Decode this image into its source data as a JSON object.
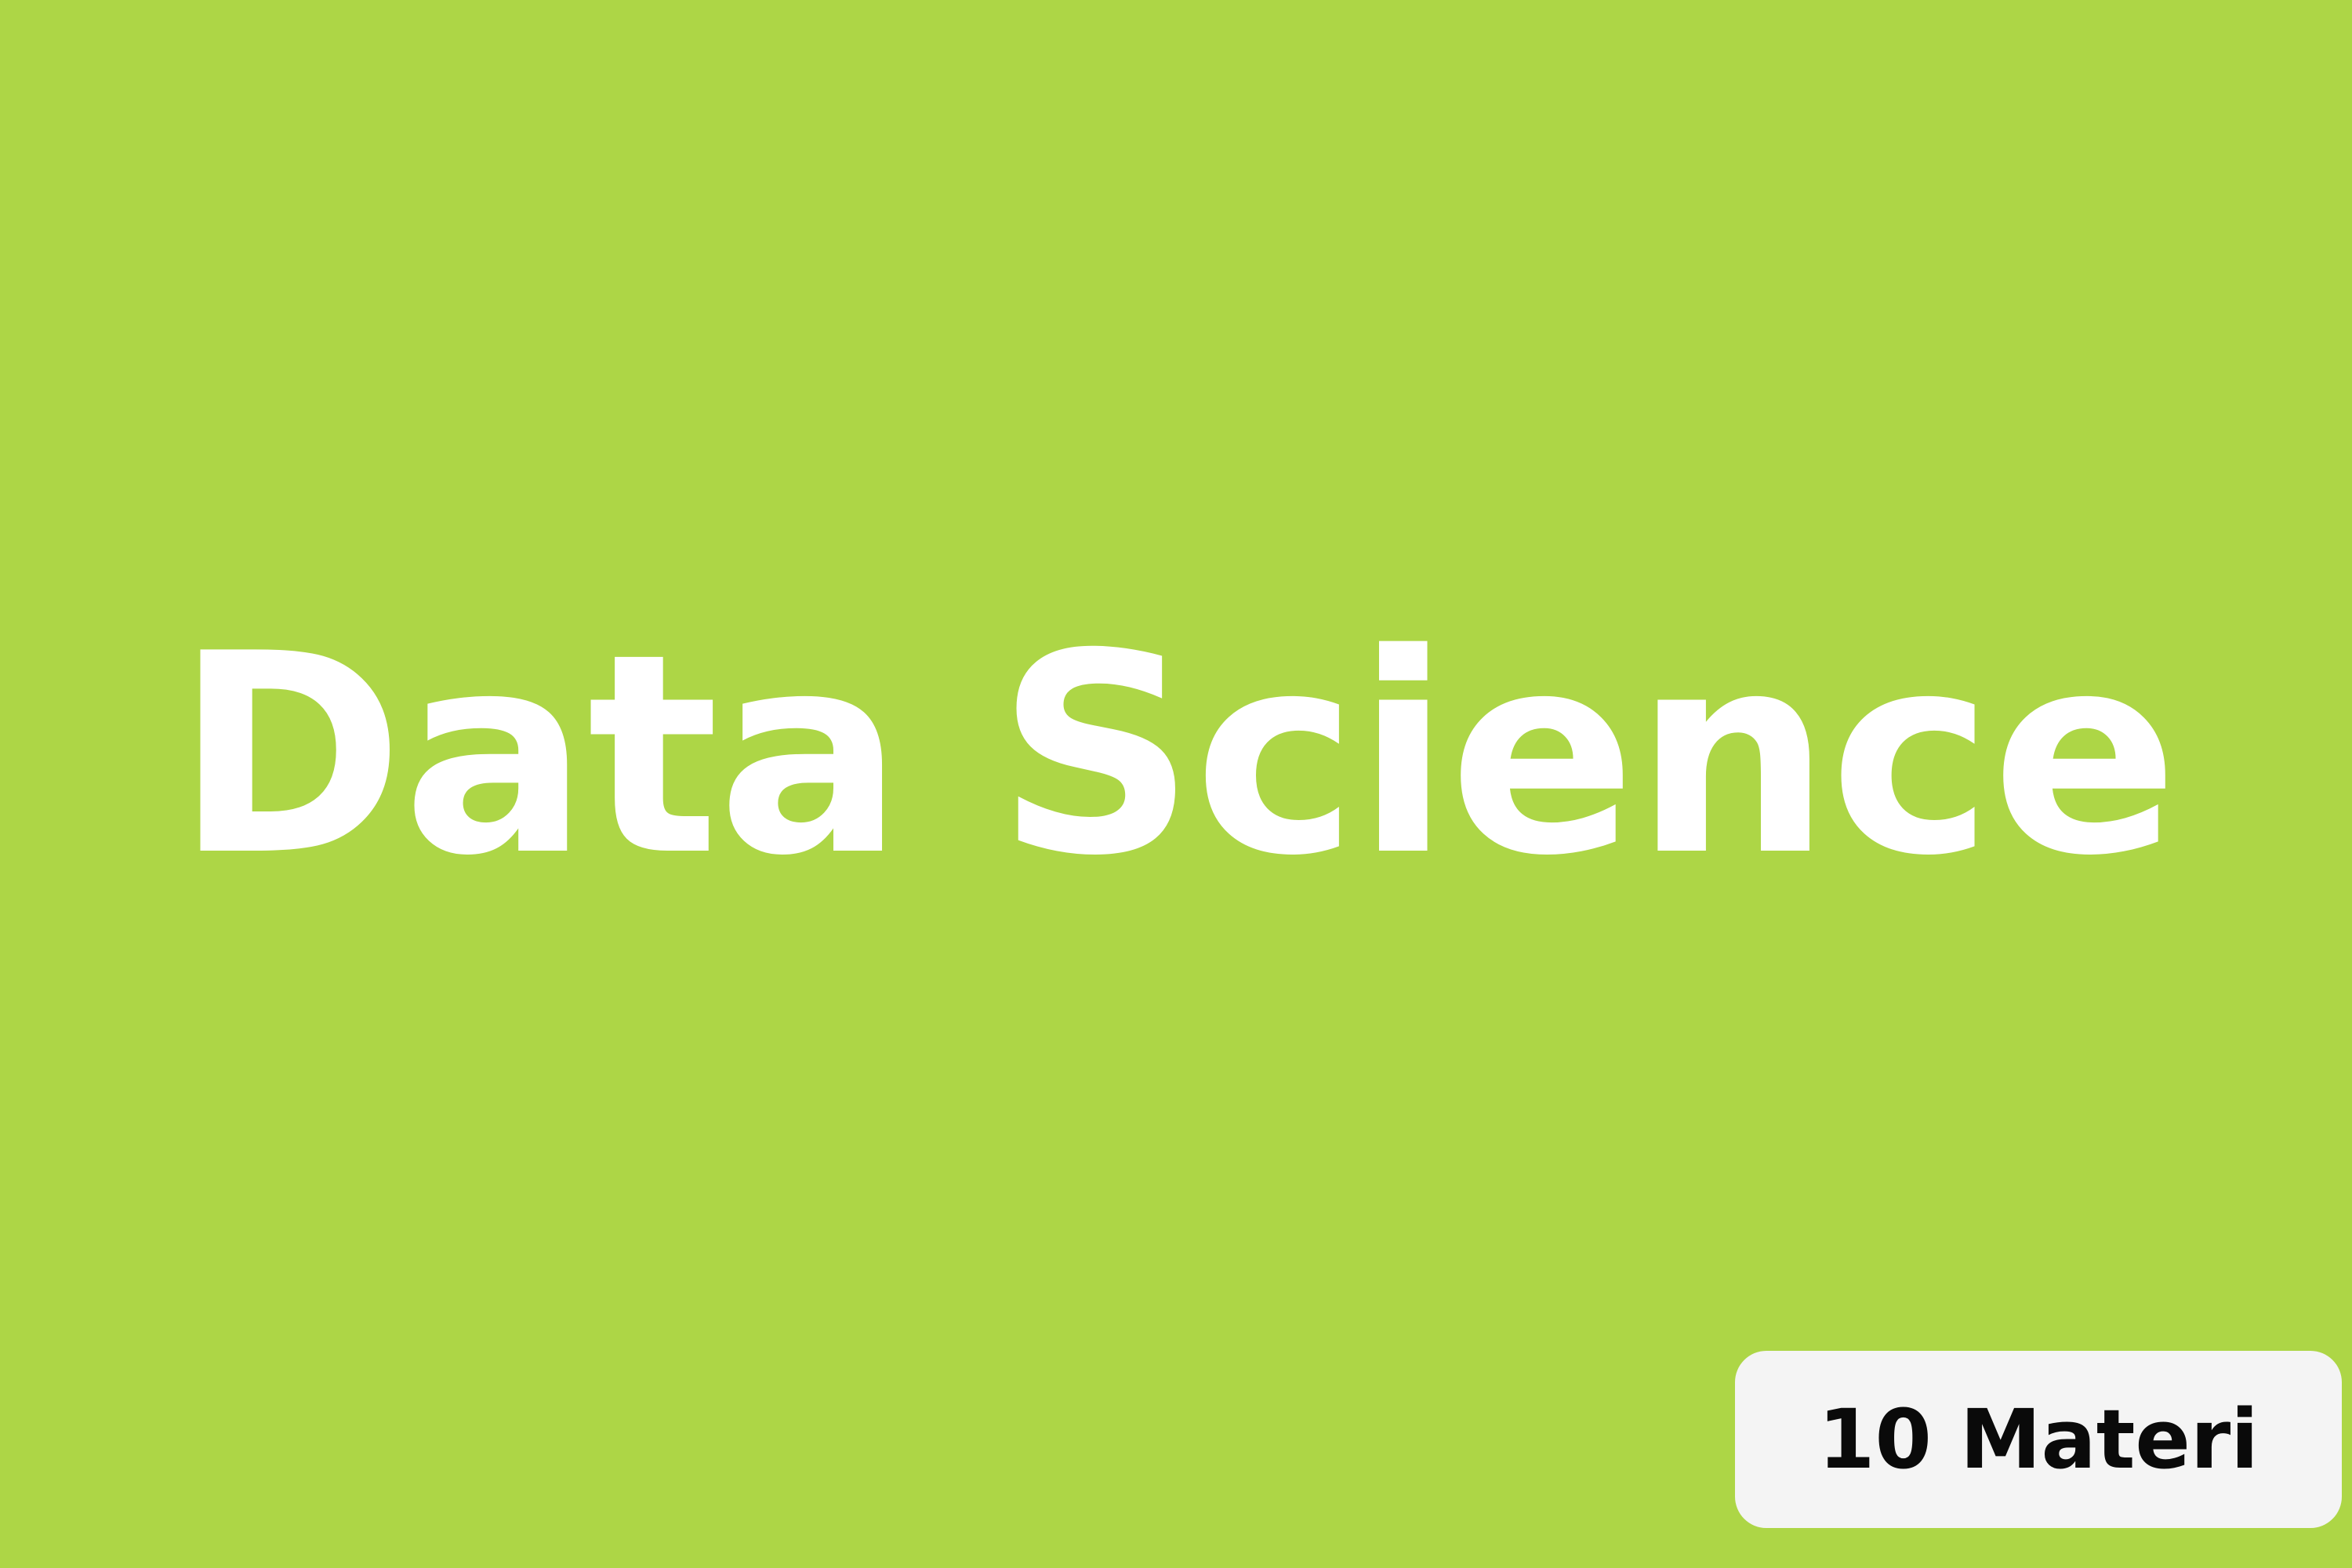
{
  "card": {
    "background_color": "#add646",
    "title": "Data Science",
    "title_color": "#ffffff",
    "badge": {
      "label": "10 Materi",
      "background_color": "#f4f4f4",
      "text_color": "#0a0a0a"
    }
  }
}
